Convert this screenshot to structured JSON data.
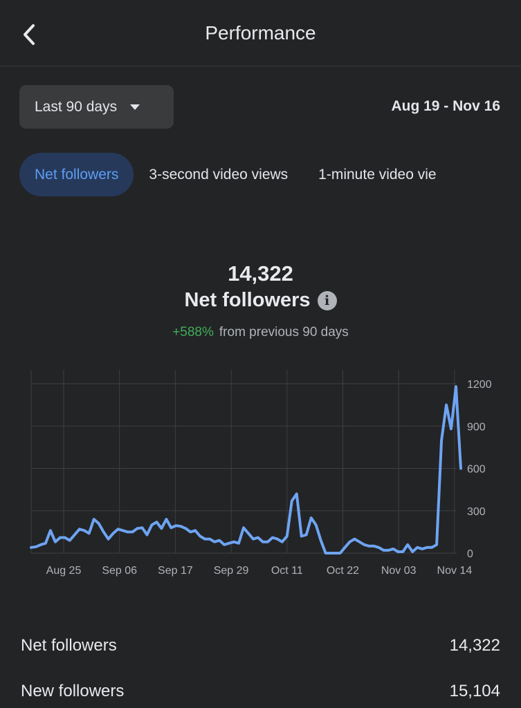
{
  "header": {
    "title": "Performance",
    "back_icon": "chevron-left-icon"
  },
  "controls": {
    "range_label": "Last 90 days",
    "range_caret_icon": "caret-down-icon",
    "date_range": "Aug 19 - Nov 16"
  },
  "tabs": [
    {
      "label": "Net followers",
      "active": true
    },
    {
      "label": "3-second video views",
      "active": false
    },
    {
      "label": "1-minute video vie",
      "active": false
    }
  ],
  "summary": {
    "value": "14,322",
    "label": "Net followers",
    "info_icon": "info-icon",
    "change": "+588%",
    "change_text": "from previous 90 days"
  },
  "chart_data": {
    "type": "line",
    "x_ticks": [
      "Aug 25",
      "Sep 06",
      "Sep 17",
      "Sep 29",
      "Oct 11",
      "Oct 22",
      "Nov 03",
      "Nov 14"
    ],
    "y_ticks": [
      "0",
      "300",
      "600",
      "900",
      "1200"
    ],
    "ylim": [
      0,
      1200
    ],
    "grid": true,
    "line_color": "#6ea4f2",
    "series": [
      {
        "values": [
          40,
          45,
          60,
          70,
          160,
          80,
          110,
          110,
          90,
          130,
          170,
          160,
          140,
          240,
          210,
          150,
          100,
          140,
          170,
          160,
          150,
          150,
          175,
          180,
          130,
          200,
          220,
          175,
          240,
          180,
          195,
          190,
          175,
          150,
          160,
          120,
          100,
          100,
          80,
          90,
          60,
          70,
          80,
          70,
          180,
          140,
          100,
          110,
          80,
          80,
          110,
          100,
          80,
          120,
          370,
          420,
          120,
          130,
          250,
          200,
          90,
          0,
          0,
          0,
          0,
          40,
          80,
          100,
          80,
          60,
          50,
          50,
          40,
          20,
          20,
          30,
          10,
          10,
          60,
          10,
          40,
          30,
          40,
          40,
          60,
          800,
          1050,
          880,
          1180,
          600
        ]
      }
    ]
  },
  "stats": [
    {
      "label": "Net followers",
      "value": "14,322"
    },
    {
      "label": "New followers",
      "value": "15,104"
    }
  ]
}
